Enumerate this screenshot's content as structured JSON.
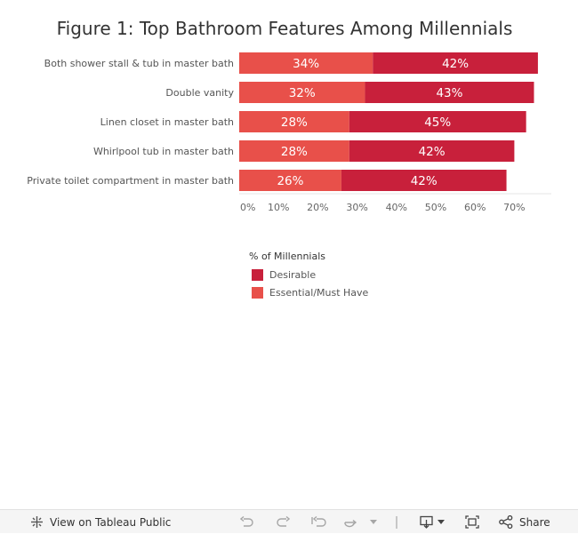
{
  "chart_data": {
    "type": "bar",
    "stacked": true,
    "orientation": "horizontal",
    "title": "Figure 1: Top Bathroom Features Among Millennials",
    "categories": [
      "Both shower stall & tub in master bath",
      "Double vanity",
      "Linen closet in master bath",
      "Whirlpool tub in master bath",
      "Private toilet compartment in master bath"
    ],
    "series": [
      {
        "name": "Essential/Must Have",
        "values": [
          34,
          32,
          28,
          28,
          26
        ],
        "labels": [
          "34%",
          "32%",
          "28%",
          "28%",
          "26%"
        ],
        "color": "#e8504a"
      },
      {
        "name": "Desirable",
        "values": [
          42,
          43,
          45,
          42,
          42
        ],
        "labels": [
          "42%",
          "43%",
          "45%",
          "42%",
          "42%"
        ],
        "color": "#c8203b"
      }
    ],
    "xlim": [
      0,
      80
    ],
    "xticks": [
      0,
      10,
      20,
      30,
      40,
      50,
      60,
      70
    ],
    "xtick_labels": [
      "0%",
      "10%",
      "20%",
      "30%",
      "40%",
      "50%",
      "60%",
      "70%"
    ],
    "legend": {
      "title": "% of Millennials",
      "position": "below",
      "order": [
        "Desirable",
        "Essential/Must Have"
      ]
    },
    "grid": false
  },
  "toolbar": {
    "view_label": "View on Tableau Public",
    "share_label": "Share",
    "icons": [
      "tableau-logo-icon",
      "undo-icon",
      "redo-icon",
      "revert-icon",
      "refresh-icon",
      "dropdown-icon",
      "download-icon",
      "fullscreen-icon",
      "share-icon"
    ]
  }
}
